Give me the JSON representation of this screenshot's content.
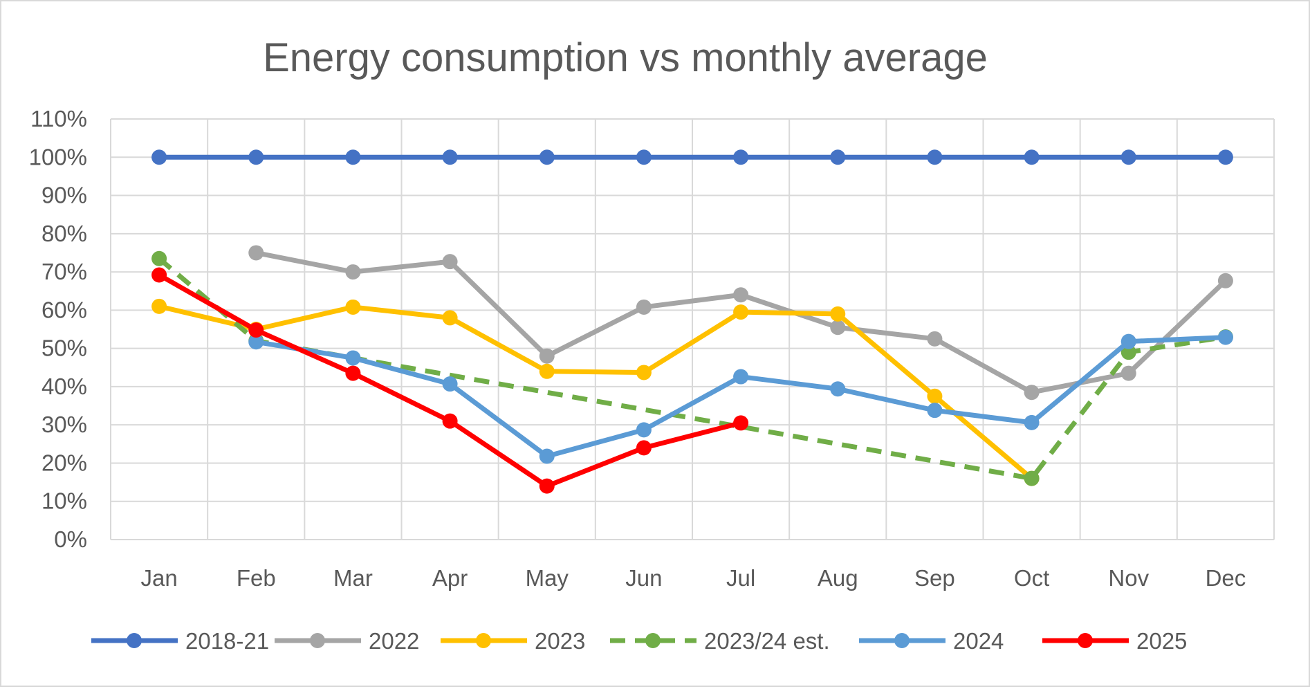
{
  "chart_data": {
    "type": "line",
    "title": "Energy consumption vs monthly average",
    "xlabel": "",
    "ylabel": "",
    "categories": [
      "Jan",
      "Feb",
      "Mar",
      "Apr",
      "May",
      "Jun",
      "Jul",
      "Aug",
      "Sep",
      "Oct",
      "Nov",
      "Dec"
    ],
    "ylim": [
      0,
      110
    ],
    "yticks": [
      0,
      10,
      20,
      30,
      40,
      50,
      60,
      70,
      80,
      90,
      100,
      110
    ],
    "ytick_labels": [
      "0%",
      "10%",
      "20%",
      "30%",
      "40%",
      "50%",
      "60%",
      "70%",
      "80%",
      "90%",
      "100%",
      "110%"
    ],
    "legend_position": "bottom",
    "grid": true,
    "series": [
      {
        "name": "2018-21",
        "color": "#4472C4",
        "dashed": false,
        "values": [
          100,
          100,
          100,
          100,
          100,
          100,
          100,
          100,
          100,
          100,
          100,
          100
        ]
      },
      {
        "name": "2022",
        "color": "#A5A5A5",
        "dashed": false,
        "values": [
          null,
          75,
          70,
          72.7,
          48,
          60.8,
          64,
          55.5,
          52.5,
          38.5,
          43.5,
          67.7
        ]
      },
      {
        "name": "2023",
        "color": "#FFC000",
        "dashed": false,
        "values": [
          61,
          55,
          60.8,
          58,
          44,
          43.7,
          59.5,
          59,
          37.5,
          16,
          null,
          null
        ]
      },
      {
        "name": "2023/24 est.",
        "color": "#70AD47",
        "dashed": true,
        "values": [
          73.5,
          52,
          null,
          null,
          null,
          null,
          null,
          null,
          null,
          16,
          49,
          53
        ]
      },
      {
        "name": "2024",
        "color": "#5B9BD5",
        "dashed": false,
        "values": [
          null,
          51.7,
          47.5,
          40.7,
          21.8,
          28.7,
          42.6,
          39.4,
          33.8,
          30.6,
          51.8,
          52.9
        ]
      },
      {
        "name": "2025",
        "color": "#FF0000",
        "dashed": false,
        "values": [
          69.2,
          54.8,
          43.5,
          31,
          14,
          24,
          30.5,
          null,
          null,
          null,
          null,
          null
        ]
      }
    ]
  }
}
